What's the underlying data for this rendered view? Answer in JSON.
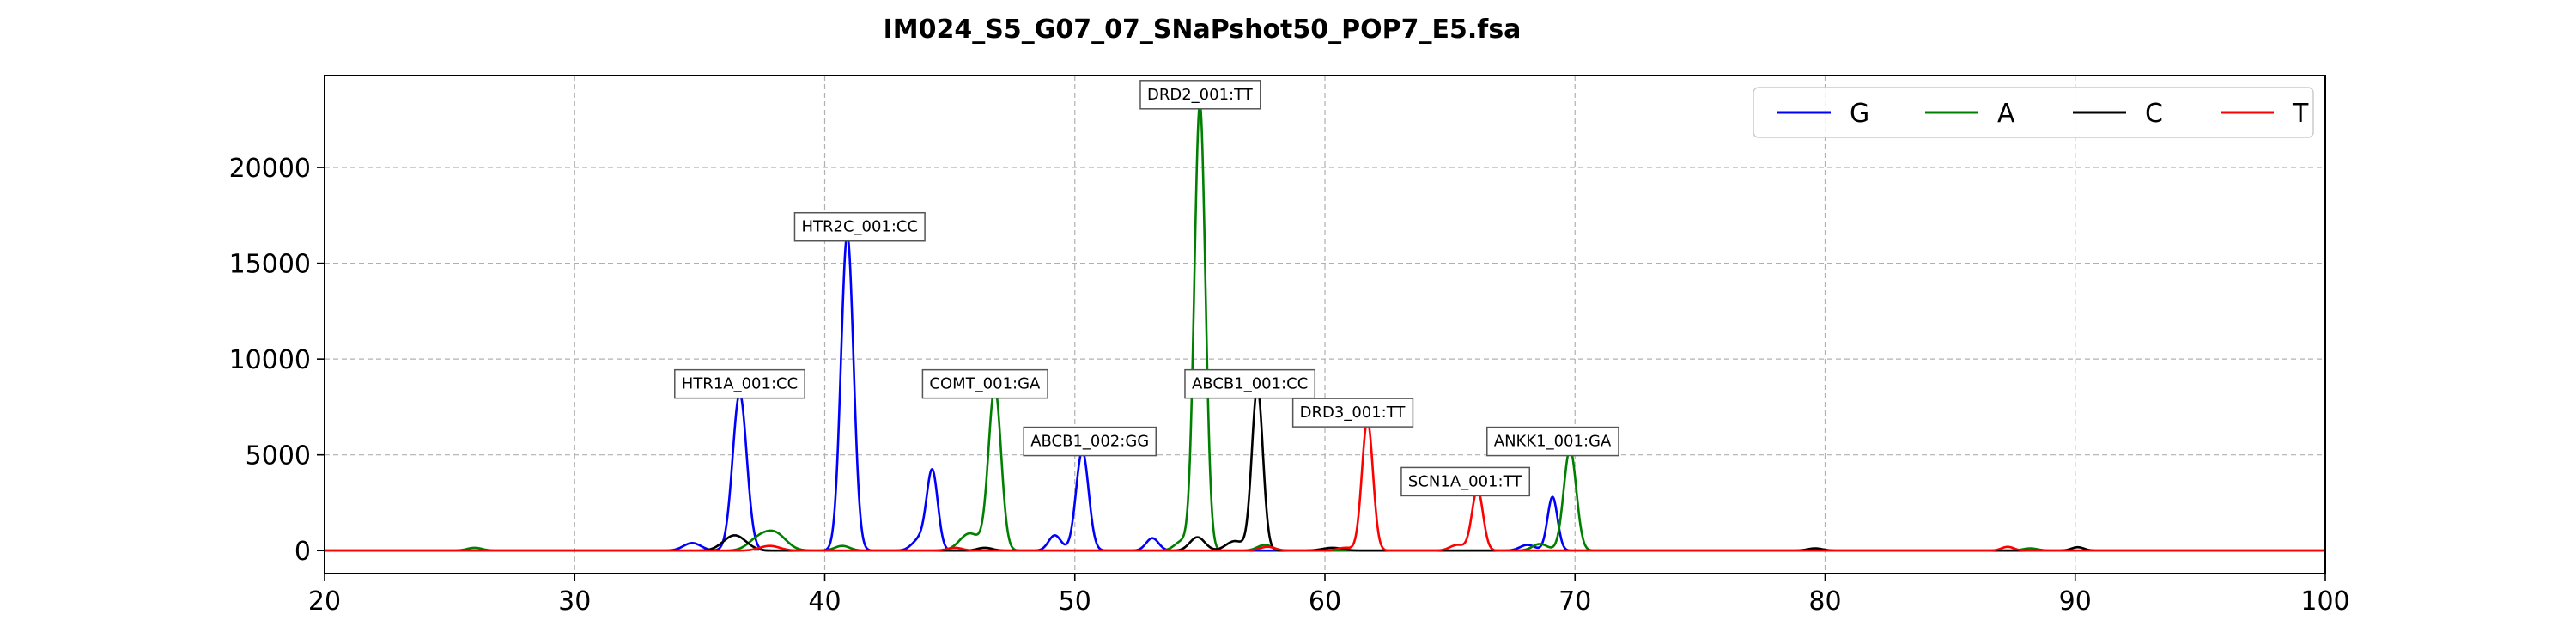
{
  "chart_data": {
    "type": "line",
    "title": "IM024_S5_G07_07_SNaPshot50_POP7_E5.fsa",
    "xlabel": "",
    "ylabel": "",
    "xlim": [
      20,
      100
    ],
    "ylim": [
      -1200,
      24800
    ],
    "x_ticks": [
      20,
      30,
      40,
      50,
      60,
      70,
      80,
      90,
      100
    ],
    "y_ticks": [
      0,
      5000,
      10000,
      15000,
      20000
    ],
    "grid": true,
    "legend_position": "top-right",
    "series": [
      {
        "name": "G",
        "color": "#0000ff",
        "peaks": [
          [
            34.7,
            400,
            0.35
          ],
          [
            36.6,
            8200,
            0.28
          ],
          [
            40.9,
            16500,
            0.25
          ],
          [
            43.8,
            600,
            0.3
          ],
          [
            44.3,
            4100,
            0.22
          ],
          [
            49.2,
            800,
            0.25
          ],
          [
            50.3,
            5200,
            0.25
          ],
          [
            53.1,
            650,
            0.25
          ],
          [
            68.1,
            300,
            0.3
          ],
          [
            69.1,
            2800,
            0.2
          ]
        ]
      },
      {
        "name": "A",
        "color": "#008000",
        "peaks": [
          [
            26.0,
            150,
            0.3
          ],
          [
            37.3,
            500,
            0.4
          ],
          [
            38.0,
            900,
            0.45
          ],
          [
            40.7,
            250,
            0.3
          ],
          [
            45.8,
            900,
            0.4
          ],
          [
            46.8,
            8500,
            0.25
          ],
          [
            54.3,
            500,
            0.3
          ],
          [
            55.0,
            23300,
            0.22
          ],
          [
            57.6,
            300,
            0.3
          ],
          [
            68.6,
            350,
            0.3
          ],
          [
            69.8,
            5300,
            0.25
          ],
          [
            88.2,
            120,
            0.3
          ]
        ]
      },
      {
        "name": "C",
        "color": "#000000",
        "peaks": [
          [
            36.4,
            800,
            0.45
          ],
          [
            46.4,
            150,
            0.3
          ],
          [
            54.9,
            700,
            0.3
          ],
          [
            56.4,
            500,
            0.35
          ],
          [
            57.3,
            8500,
            0.22
          ],
          [
            60.3,
            150,
            0.4
          ],
          [
            79.6,
            120,
            0.3
          ],
          [
            90.1,
            180,
            0.25
          ]
        ]
      },
      {
        "name": "T",
        "color": "#ff0000",
        "peaks": [
          [
            37.8,
            250,
            0.4
          ],
          [
            45.2,
            150,
            0.3
          ],
          [
            57.7,
            200,
            0.3
          ],
          [
            60.8,
            150,
            0.3
          ],
          [
            61.7,
            6800,
            0.22
          ],
          [
            65.3,
            300,
            0.3
          ],
          [
            66.1,
            3200,
            0.22
          ],
          [
            87.3,
            200,
            0.25
          ]
        ]
      }
    ],
    "annotations": [
      {
        "text": "HTR1A_001:CC",
        "x": 36.6,
        "y": 8700
      },
      {
        "text": "HTR2C_001:CC",
        "x": 41.4,
        "y": 16900
      },
      {
        "text": "COMT_001:GA",
        "x": 46.4,
        "y": 8700
      },
      {
        "text": "ABCB1_002:GG",
        "x": 50.6,
        "y": 5700
      },
      {
        "text": "DRD2_001:TT",
        "x": 55.0,
        "y": 23800
      },
      {
        "text": "ABCB1_001:CC",
        "x": 57.0,
        "y": 8700
      },
      {
        "text": "DRD3_001:TT",
        "x": 61.1,
        "y": 7200
      },
      {
        "text": "SCN1A_001:TT",
        "x": 65.6,
        "y": 3600
      },
      {
        "text": "ANKK1_001:GA",
        "x": 69.1,
        "y": 5700
      }
    ]
  }
}
